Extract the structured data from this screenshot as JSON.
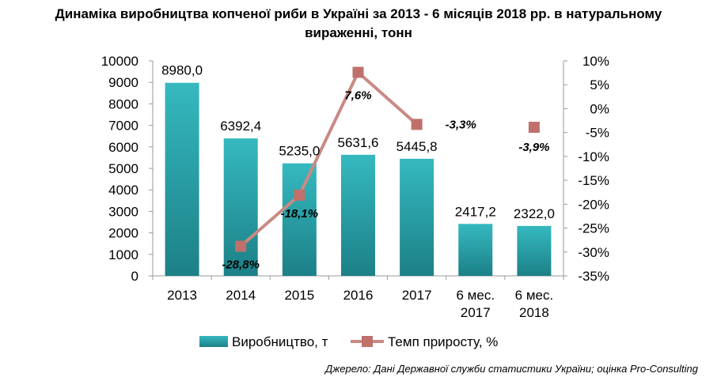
{
  "title_lines": [
    "Динаміка виробництва копченої риби в Україні за 2013 - 6 місяців 2018 рр. в натуральному",
    "вираженні, тонн"
  ],
  "source": "Джерело: Дані Державної служби статистики України; оцінка Pro-Consulting",
  "chart_data": {
    "type": "bar",
    "categories": [
      [
        "2013"
      ],
      [
        "2014"
      ],
      [
        "2015"
      ],
      [
        "2016"
      ],
      [
        "2017"
      ],
      [
        "6 мес.",
        "2017"
      ],
      [
        "6 мес.",
        "2018"
      ]
    ],
    "series": [
      {
        "name": "Виробництво, т",
        "type": "bar",
        "axis": "left",
        "values": [
          8980.0,
          6392.4,
          5235.0,
          5631.6,
          5445.8,
          2417.2,
          2322.0
        ],
        "labels": [
          "8980,0",
          "6392,4",
          "5235,0",
          "5631,6",
          "5445,8",
          "2417,2",
          "2322,0"
        ],
        "color": "#2aa7ad"
      },
      {
        "name": "Темп приросту, %",
        "type": "line",
        "axis": "right",
        "values": [
          null,
          -28.8,
          -18.1,
          7.6,
          -3.3,
          null,
          -3.9
        ],
        "labels": [
          null,
          "-28,8%",
          "-18,1%",
          "7,6%",
          "-3,3%",
          null,
          "-3,9%"
        ],
        "color": "#c98a84",
        "marker_color": "#c0706a"
      }
    ],
    "y_left": {
      "ylim": [
        0,
        10000
      ],
      "ticks": [
        "0",
        "1000",
        "2000",
        "3000",
        "4000",
        "5000",
        "6000",
        "7000",
        "8000",
        "9000",
        "10000"
      ]
    },
    "y_right": {
      "ylim": [
        -35,
        10
      ],
      "ticks": [
        "-35%",
        "-30%",
        "-25%",
        "-20%",
        "-15%",
        "-10%",
        "-5%",
        "0%",
        "5%",
        "10%"
      ]
    },
    "grid": false,
    "legend_position": "bottom"
  }
}
